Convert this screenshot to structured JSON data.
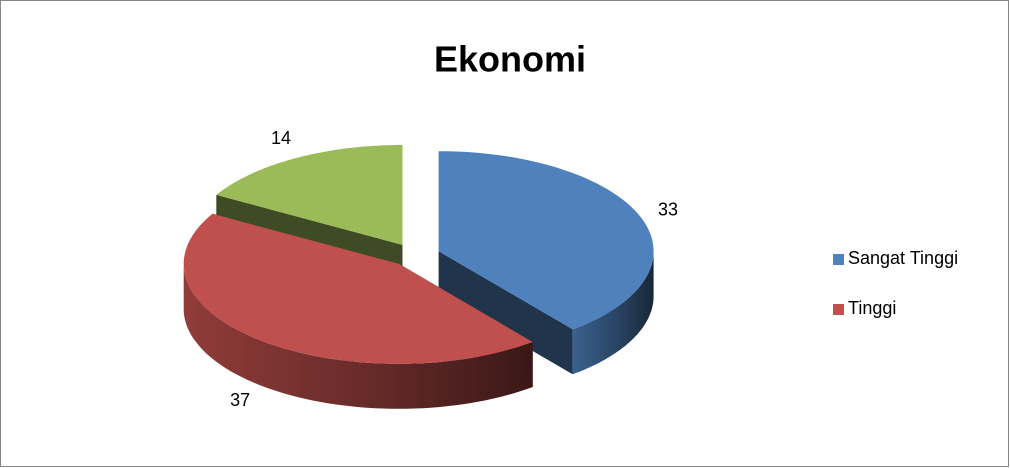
{
  "chart_data": {
    "type": "pie3d",
    "title": "Ekonomi",
    "categories": [
      "Sangat Tinggi",
      "Tinggi",
      null
    ],
    "values": [
      33,
      37,
      14
    ],
    "colors": [
      "#4f81bd",
      "#c0504d",
      "#9bbb59"
    ],
    "legend": "right"
  }
}
